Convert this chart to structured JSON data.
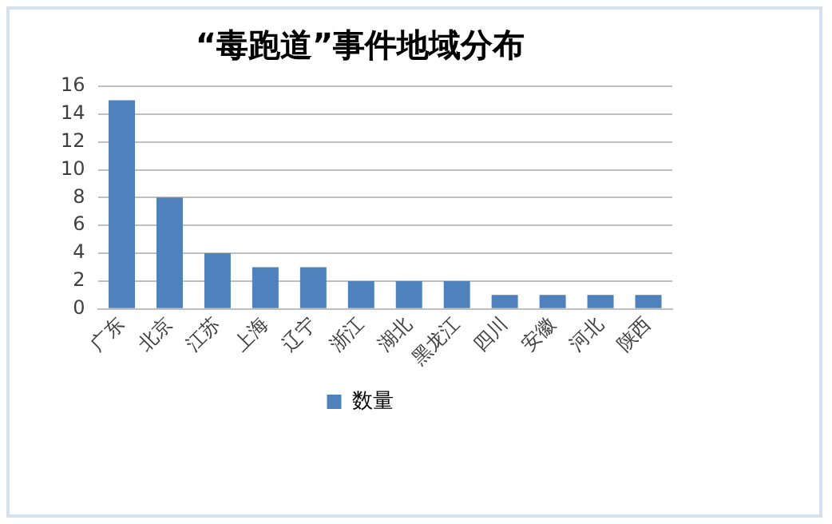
{
  "chart_data": {
    "type": "bar",
    "title": "“毒跑道”事件地域分布",
    "categories": [
      "广东",
      "北京",
      "江苏",
      "上海",
      "辽宁",
      "浙江",
      "湖北",
      "黑龙江",
      "四川",
      "安徽",
      "河北",
      "陕西"
    ],
    "series": [
      {
        "name": "数量",
        "color": "#4f81bd",
        "values": [
          15,
          8,
          4,
          3,
          3,
          2,
          2,
          2,
          1,
          1,
          1,
          1
        ]
      }
    ],
    "ylim": [
      0,
      16
    ],
    "yticks": [
      0,
      2,
      4,
      6,
      8,
      10,
      12,
      14,
      16
    ],
    "grid": "y",
    "legend": "bottom"
  }
}
